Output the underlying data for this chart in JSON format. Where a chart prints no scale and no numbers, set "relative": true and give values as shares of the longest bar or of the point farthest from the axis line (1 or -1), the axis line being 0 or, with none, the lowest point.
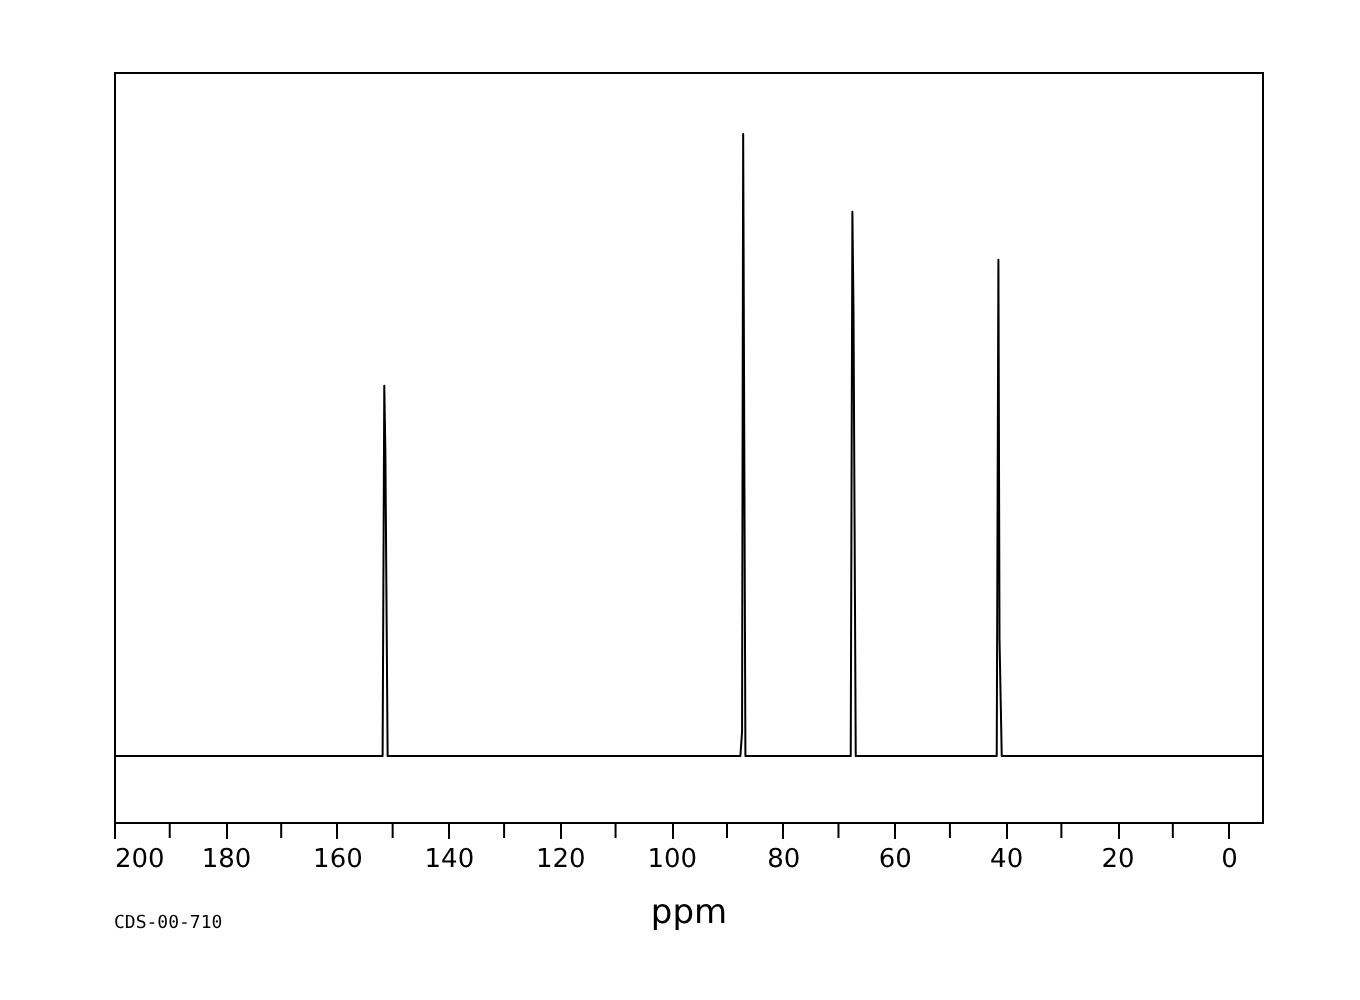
{
  "chart_data": {
    "type": "line",
    "relative": true,
    "xlabel": "ppm",
    "annotations": [
      "CDS-00-710"
    ],
    "xlim": [
      200,
      -6
    ],
    "xticks": [
      200,
      180,
      160,
      140,
      120,
      100,
      80,
      60,
      40,
      20,
      0
    ],
    "grid": false,
    "tick_labels": "x",
    "series": [
      {
        "color": "#000000",
        "x": [
          200,
          151.8,
          151.5,
          151.3,
          150.9,
          87.6,
          87.3,
          87.1,
          86.7,
          67.8,
          67.5,
          67.3,
          66.9,
          41.6,
          41.3,
          41.1,
          40.7,
          -6
        ],
        "values": [
          0.096,
          0.096,
          0.634,
          0.535,
          0.096,
          0.096,
          0.131,
          1,
          0.096,
          0.096,
          0.887,
          0.741,
          0.096,
          0.096,
          0.817,
          0.265,
          0.096,
          0.096
        ]
      }
    ]
  }
}
